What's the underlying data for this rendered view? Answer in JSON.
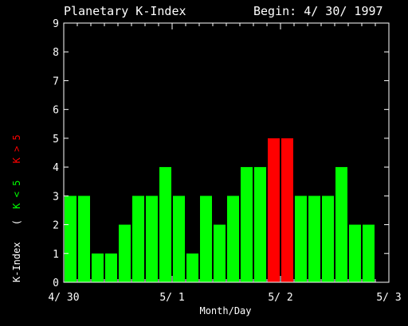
{
  "chart_data": {
    "type": "bar",
    "title": "Planetary K-Index",
    "subtitle": "Begin: 4/ 30/ 1997",
    "xlabel": "Month/Day",
    "ylabel": "K-Index",
    "ylabel_legend": {
      "open": "(",
      "low": "K < 5",
      "high": "K > 5"
    },
    "ylim": [
      0,
      9
    ],
    "yticks": [
      "0",
      "1",
      "2",
      "3",
      "4",
      "5",
      "6",
      "7",
      "8",
      "9"
    ],
    "xlim": [
      0,
      24
    ],
    "xticks": [
      {
        "label": "4/ 30",
        "pos": 0
      },
      {
        "label": "5/ 1",
        "pos": 8
      },
      {
        "label": "5/ 2",
        "pos": 16
      },
      {
        "label": "5/ 3",
        "pos": 24
      }
    ],
    "values": [
      3,
      3,
      1,
      1,
      2,
      3,
      3,
      4,
      3,
      1,
      3,
      2,
      3,
      4,
      4,
      5,
      5,
      3,
      3,
      3,
      4,
      2,
      2
    ],
    "threshold": 5,
    "colors": {
      "low": "#00ff00",
      "high": "#ff0000",
      "axis": "#ffffff",
      "background": "#000000",
      "legend_low": "#00ff00",
      "legend_high": "#ff0000"
    }
  }
}
